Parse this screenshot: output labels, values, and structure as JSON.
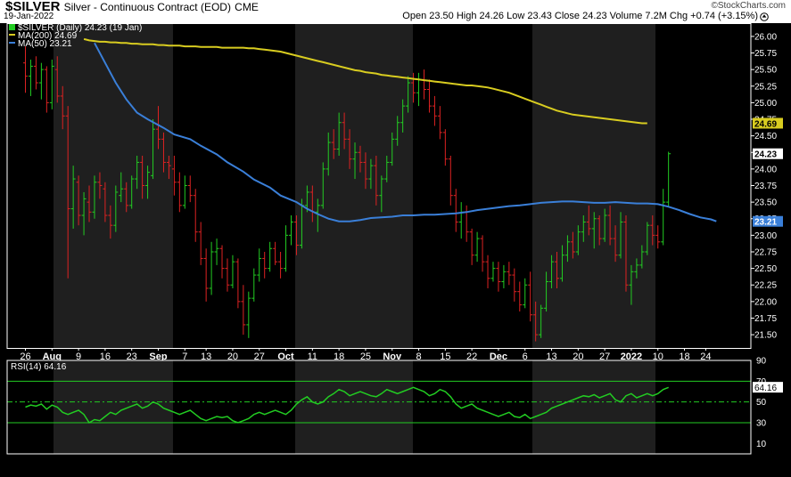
{
  "header": {
    "symbol": "$SILVER",
    "description": "Silver - Continuous Contract (EOD)",
    "exchange": "CME",
    "date": "19-Jan-2022",
    "logo": "©StockCharts.com",
    "ohlc": "Open 23.50   High 24.26   Low 23.43   Close 24.23   Volume 7.2M   Chg +0.74 (+3.15%)",
    "chg_arrow_icon": "up-arrow-icon"
  },
  "legend": {
    "price": "$SILVER (Daily) 24.23 (19 Jan)",
    "ma200": "MA(200) 24.69",
    "ma50": "MA(50) 23.21",
    "rsi": "RSI(14) 64.16"
  },
  "colors": {
    "background": "#000000",
    "up": "#22cc22",
    "down": "#dd2222",
    "ma200": "#d8cc20",
    "ma50": "#3a7fd8",
    "rsi": "#22cc22",
    "band": "#1f1f1f",
    "axis": "#ffffff"
  },
  "chart_data": [
    {
      "type": "ohlc",
      "y_scale": "linear",
      "ylim": [
        21.3,
        26.2
      ],
      "y_ticks": [
        21.5,
        21.75,
        22.0,
        22.25,
        22.5,
        22.75,
        23.0,
        23.25,
        23.5,
        23.75,
        24.0,
        24.25,
        24.5,
        24.75,
        25.0,
        25.25,
        25.5,
        25.75,
        26.0
      ],
      "y_tick_labels": [
        "21.50",
        "21.75",
        "22.00",
        "22.25",
        "22.50",
        "22.75",
        "23.00",
        "23.25",
        "23.50",
        "23.75",
        "24.00",
        "24.25",
        "24.50",
        "24.75",
        "25.00",
        "25.25",
        "25.50",
        "25.75",
        "26.00"
      ],
      "x_tick_labels": [
        "26",
        "Aug",
        "9",
        "16",
        "23",
        "Sep",
        "7",
        "13",
        "20",
        "27",
        "Oct",
        "11",
        "18",
        "25",
        "Nov",
        "8",
        "15",
        "22",
        "Dec",
        "6",
        "13",
        "20",
        "27",
        "2022",
        "10",
        "18",
        "24"
      ],
      "x_tick_index": [
        0,
        5,
        10,
        15,
        20,
        25,
        30,
        34,
        39,
        44,
        49,
        54,
        59,
        64,
        69,
        74,
        79,
        84,
        89,
        94,
        99,
        104,
        109,
        114,
        119,
        124,
        128
      ],
      "grid": false,
      "month_bands": [
        "Aug",
        "Oct",
        "Dec"
      ],
      "bars": [
        [
          25.6,
          25.85,
          25.15,
          25.4
        ],
        [
          25.4,
          25.65,
          25.1,
          25.55
        ],
        [
          25.55,
          25.7,
          25.2,
          25.3
        ],
        [
          25.3,
          25.6,
          25.05,
          25.5
        ],
        [
          25.5,
          25.55,
          24.85,
          25.0
        ],
        [
          25.0,
          25.65,
          24.9,
          25.55
        ],
        [
          25.5,
          25.7,
          25.0,
          25.1
        ],
        [
          25.1,
          25.25,
          24.6,
          24.8
        ],
        [
          24.8,
          24.95,
          22.35,
          23.4
        ],
        [
          23.4,
          24.05,
          23.1,
          23.85
        ],
        [
          23.8,
          23.9,
          23.15,
          23.3
        ],
        [
          23.3,
          23.65,
          23.0,
          23.55
        ],
        [
          23.5,
          23.75,
          23.2,
          23.35
        ],
        [
          23.35,
          23.9,
          23.25,
          23.8
        ],
        [
          23.8,
          23.95,
          23.55,
          23.75
        ],
        [
          23.7,
          23.8,
          23.2,
          23.3
        ],
        [
          23.3,
          23.45,
          22.95,
          23.15
        ],
        [
          23.15,
          23.75,
          23.05,
          23.65
        ],
        [
          23.6,
          23.95,
          23.5,
          23.7
        ],
        [
          23.7,
          23.8,
          23.35,
          23.45
        ],
        [
          23.45,
          23.9,
          23.4,
          23.85
        ],
        [
          23.85,
          24.2,
          23.7,
          24.1
        ],
        [
          24.1,
          24.2,
          23.55,
          23.75
        ],
        [
          23.75,
          24.05,
          23.55,
          23.95
        ],
        [
          23.9,
          24.75,
          23.85,
          24.6
        ],
        [
          24.6,
          24.95,
          24.3,
          24.45
        ],
        [
          24.45,
          24.55,
          23.95,
          24.1
        ],
        [
          24.1,
          24.2,
          23.85,
          24.05
        ],
        [
          24.0,
          24.2,
          23.6,
          23.8
        ],
        [
          23.8,
          23.95,
          23.35,
          23.45
        ],
        [
          23.45,
          23.9,
          23.4,
          23.75
        ],
        [
          23.75,
          23.9,
          23.5,
          23.6
        ],
        [
          23.6,
          23.7,
          22.9,
          23.05
        ],
        [
          23.05,
          23.2,
          22.55,
          22.65
        ],
        [
          22.65,
          22.8,
          22.0,
          22.2
        ],
        [
          22.2,
          22.9,
          22.1,
          22.75
        ],
        [
          22.75,
          22.95,
          22.55,
          22.8
        ],
        [
          22.8,
          22.85,
          22.35,
          22.5
        ],
        [
          22.5,
          22.65,
          22.15,
          22.25
        ],
        [
          22.25,
          22.7,
          22.2,
          22.6
        ],
        [
          22.6,
          22.65,
          21.9,
          22.0
        ],
        [
          22.0,
          22.25,
          21.5,
          21.65
        ],
        [
          21.65,
          22.15,
          21.45,
          22.05
        ],
        [
          22.05,
          22.5,
          22.0,
          22.4
        ],
        [
          22.4,
          22.8,
          22.3,
          22.65
        ],
        [
          22.65,
          22.75,
          22.35,
          22.5
        ],
        [
          22.5,
          22.9,
          22.45,
          22.8
        ],
        [
          22.8,
          22.9,
          22.55,
          22.6
        ],
        [
          22.6,
          22.75,
          22.35,
          22.5
        ],
        [
          22.5,
          23.15,
          22.45,
          23.0
        ],
        [
          23.0,
          23.3,
          22.85,
          23.2
        ],
        [
          23.2,
          23.3,
          22.7,
          22.85
        ],
        [
          22.85,
          23.55,
          22.8,
          23.45
        ],
        [
          23.45,
          23.75,
          23.35,
          23.65
        ],
        [
          23.65,
          23.75,
          23.2,
          23.35
        ],
        [
          23.35,
          23.55,
          23.05,
          23.45
        ],
        [
          23.45,
          24.1,
          23.4,
          24.0
        ],
        [
          24.0,
          24.55,
          23.9,
          24.4
        ],
        [
          24.4,
          24.6,
          24.15,
          24.3
        ],
        [
          24.3,
          24.85,
          24.2,
          24.7
        ],
        [
          24.7,
          24.85,
          24.3,
          24.45
        ],
        [
          24.45,
          24.6,
          24.0,
          24.15
        ],
        [
          24.15,
          24.4,
          23.85,
          24.25
        ],
        [
          24.25,
          24.35,
          23.95,
          24.1
        ],
        [
          24.1,
          24.25,
          23.7,
          23.85
        ],
        [
          23.85,
          24.15,
          23.7,
          24.05
        ],
        [
          24.05,
          24.2,
          23.45,
          23.6
        ],
        [
          23.6,
          23.9,
          23.35,
          23.85
        ],
        [
          23.85,
          24.2,
          23.8,
          24.1
        ],
        [
          24.1,
          24.55,
          24.05,
          24.45
        ],
        [
          24.45,
          24.8,
          24.35,
          24.7
        ],
        [
          24.7,
          25.05,
          24.55,
          24.95
        ],
        [
          24.95,
          25.4,
          24.85,
          25.3
        ],
        [
          25.3,
          25.45,
          25.0,
          25.15
        ],
        [
          25.15,
          25.45,
          24.95,
          25.35
        ],
        [
          25.35,
          25.5,
          25.05,
          25.2
        ],
        [
          25.2,
          25.35,
          24.85,
          24.95
        ],
        [
          24.95,
          25.1,
          24.65,
          24.8
        ],
        [
          24.8,
          24.95,
          24.45,
          24.55
        ],
        [
          24.55,
          24.6,
          24.05,
          24.15
        ],
        [
          24.15,
          24.2,
          23.45,
          23.6
        ],
        [
          23.6,
          23.7,
          23.05,
          23.2
        ],
        [
          23.2,
          23.5,
          22.95,
          23.35
        ],
        [
          23.35,
          23.45,
          22.9,
          23.05
        ],
        [
          23.05,
          23.1,
          22.55,
          22.7
        ],
        [
          22.7,
          23.05,
          22.6,
          22.95
        ],
        [
          22.95,
          23.0,
          22.45,
          22.6
        ],
        [
          22.6,
          22.7,
          22.2,
          22.35
        ],
        [
          22.35,
          22.6,
          22.3,
          22.5
        ],
        [
          22.5,
          22.6,
          22.15,
          22.3
        ],
        [
          22.3,
          22.55,
          22.2,
          22.45
        ],
        [
          22.45,
          22.6,
          22.25,
          22.4
        ],
        [
          22.4,
          22.5,
          22.0,
          22.15
        ],
        [
          22.15,
          22.3,
          21.85,
          21.95
        ],
        [
          21.95,
          22.35,
          21.9,
          22.25
        ],
        [
          22.25,
          22.45,
          21.7,
          21.8
        ],
        [
          21.8,
          22.0,
          21.4,
          21.5
        ],
        [
          21.5,
          21.95,
          21.45,
          21.9
        ],
        [
          21.9,
          22.45,
          21.85,
          22.3
        ],
        [
          22.3,
          22.7,
          22.2,
          22.6
        ],
        [
          22.6,
          22.75,
          22.2,
          22.35
        ],
        [
          22.35,
          22.85,
          22.3,
          22.7
        ],
        [
          22.7,
          23.0,
          22.6,
          22.9
        ],
        [
          22.9,
          23.05,
          22.65,
          22.75
        ],
        [
          22.75,
          23.15,
          22.7,
          23.05
        ],
        [
          23.05,
          23.3,
          22.9,
          23.2
        ],
        [
          23.2,
          23.45,
          23.0,
          23.1
        ],
        [
          23.1,
          23.35,
          22.8,
          23.25
        ],
        [
          23.25,
          23.3,
          22.85,
          22.95
        ],
        [
          22.95,
          23.4,
          22.9,
          23.3
        ],
        [
          23.3,
          23.45,
          22.85,
          22.95
        ],
        [
          22.95,
          23.15,
          22.6,
          22.7
        ],
        [
          22.7,
          23.35,
          22.65,
          23.2
        ],
        [
          23.2,
          23.3,
          22.15,
          22.25
        ],
        [
          22.25,
          22.55,
          21.95,
          22.45
        ],
        [
          22.45,
          22.65,
          22.35,
          22.55
        ],
        [
          22.55,
          22.85,
          22.5,
          22.75
        ],
        [
          22.75,
          23.2,
          22.7,
          23.15
        ],
        [
          23.15,
          23.3,
          22.85,
          23.0
        ],
        [
          23.0,
          23.15,
          22.8,
          22.9
        ],
        [
          22.9,
          23.7,
          22.85,
          23.5
        ],
        [
          23.5,
          24.26,
          23.43,
          24.23
        ]
      ],
      "ma200": [
        25.96,
        25.94,
        25.93,
        25.92,
        25.92,
        25.91,
        25.91,
        25.9,
        25.9,
        25.89,
        25.89,
        25.88,
        25.88,
        25.88,
        25.87,
        25.87,
        25.86,
        25.86,
        25.86,
        25.85,
        25.85,
        25.85,
        25.84,
        25.84,
        25.84,
        25.84,
        25.83,
        25.83,
        25.83,
        25.83,
        25.83,
        25.82,
        25.82,
        25.81,
        25.8,
        25.79,
        25.78,
        25.77,
        25.75,
        25.73,
        25.71,
        25.69,
        25.67,
        25.65,
        25.63,
        25.61,
        25.59,
        25.57,
        25.55,
        25.53,
        25.51,
        25.49,
        25.48,
        25.46,
        25.45,
        25.44,
        25.42,
        25.41,
        25.4,
        25.39,
        25.38,
        25.37,
        25.36,
        25.35,
        25.34,
        25.33,
        25.32,
        25.31,
        25.3,
        25.29,
        25.28,
        25.27,
        25.26,
        25.26,
        25.25,
        25.24,
        25.23,
        25.21,
        25.19,
        25.17,
        25.15,
        25.12,
        25.09,
        25.06,
        25.03,
        25.0,
        24.97,
        24.94,
        24.91,
        24.88,
        24.86,
        24.84,
        24.82,
        24.81,
        24.8,
        24.79,
        24.78,
        24.77,
        24.76,
        24.75,
        24.74,
        24.73,
        24.72,
        24.71,
        24.7,
        24.69,
        24.69
      ],
      "ma200_start": 11,
      "ma50": [
        25.9,
        25.6,
        25.3,
        25.05,
        24.85,
        24.75,
        24.62,
        24.52,
        24.45,
        24.35,
        24.22,
        24.1,
        23.96,
        23.84,
        23.72,
        23.6,
        23.5,
        23.4,
        23.32,
        23.25,
        23.21,
        23.21,
        23.23,
        23.26,
        23.27,
        23.28,
        23.3,
        23.3,
        23.31,
        23.31,
        23.32,
        23.33,
        23.35,
        23.38,
        23.4,
        23.42,
        23.44,
        23.45,
        23.47,
        23.49,
        23.5,
        23.51,
        23.51,
        23.5,
        23.49,
        23.49,
        23.5,
        23.49,
        23.48,
        23.48,
        23.47,
        23.43,
        23.38,
        23.32,
        23.27,
        23.24,
        23.21
      ],
      "ma50_x": [
        13,
        15,
        17,
        19,
        21,
        23,
        26,
        28,
        31,
        33,
        36,
        38,
        41,
        43,
        46,
        48,
        51,
        53,
        55,
        57,
        59,
        61,
        63,
        65,
        67,
        69,
        71,
        73,
        75,
        77,
        79,
        81,
        83,
        85,
        87,
        89,
        91,
        93,
        95,
        97,
        99,
        101,
        103,
        105,
        107,
        109,
        111,
        113,
        115,
        117,
        119,
        121,
        123,
        125,
        127,
        129,
        130
      ],
      "last_price_label": "24.23",
      "ma200_label": "24.69",
      "ma50_label": "23.21"
    },
    {
      "type": "line",
      "name": "RSI(14)",
      "ylim": [
        0,
        90
      ],
      "y_ticks": [
        10,
        30,
        50,
        70,
        90
      ],
      "y_tick_labels": [
        "10",
        "30",
        "50",
        "70",
        "90"
      ],
      "reference_lines": [
        30,
        50,
        70
      ],
      "last_label": "64.16",
      "values": [
        45,
        47,
        46,
        48,
        43,
        47,
        45,
        40,
        38,
        40,
        42,
        38,
        30,
        33,
        32,
        36,
        40,
        38,
        42,
        44,
        46,
        48,
        44,
        46,
        50,
        48,
        44,
        42,
        40,
        38,
        40,
        42,
        38,
        34,
        32,
        34,
        36,
        35,
        36,
        32,
        30,
        32,
        34,
        38,
        40,
        38,
        40,
        42,
        40,
        38,
        42,
        48,
        52,
        55,
        50,
        48,
        50,
        55,
        58,
        62,
        60,
        56,
        58,
        60,
        58,
        56,
        55,
        58,
        62,
        60,
        58,
        60,
        62,
        64,
        62,
        60,
        56,
        58,
        62,
        60,
        55,
        48,
        44,
        46,
        48,
        44,
        42,
        40,
        38,
        36,
        38,
        40,
        36,
        35,
        38,
        34,
        36,
        38,
        40,
        44,
        46,
        48,
        50,
        52,
        54,
        56,
        55,
        57,
        54,
        56,
        58,
        52,
        50,
        56,
        58,
        54,
        56,
        58,
        56,
        58,
        62,
        64
      ]
    }
  ]
}
